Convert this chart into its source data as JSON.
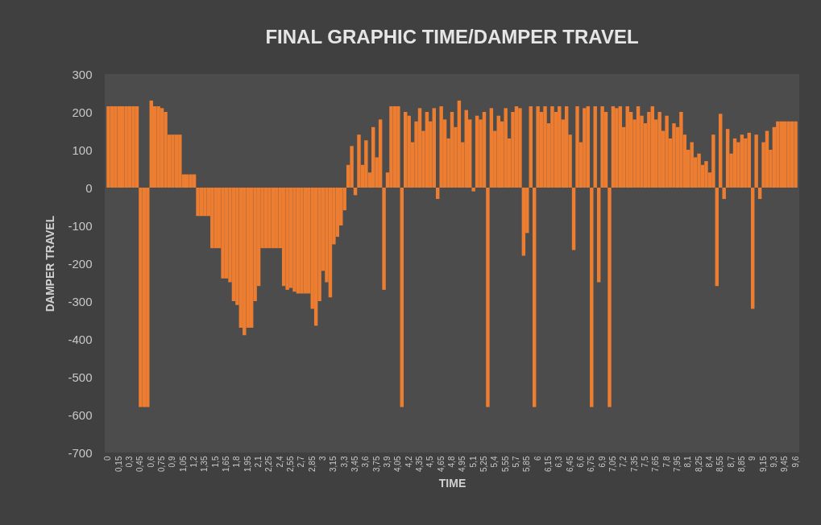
{
  "chart_data": {
    "type": "bar",
    "title": "FINAL GRAPHIC TIME/DAMPER TRAVEL",
    "xlabel": "TIME",
    "ylabel": "DAMPER TRAVEL",
    "categories": [
      "0",
      null,
      null,
      "0,15",
      null,
      null,
      "0,3",
      null,
      null,
      "0,45",
      null,
      null,
      "0,6",
      null,
      null,
      "0,75",
      null,
      null,
      "0,9",
      null,
      null,
      "1,05",
      null,
      null,
      "1,2",
      null,
      null,
      "1,35",
      null,
      null,
      "1,5",
      null,
      null,
      "1,65",
      null,
      null,
      "1,8",
      null,
      null,
      "1,95",
      null,
      null,
      "2,1",
      null,
      null,
      "2,25",
      null,
      null,
      "2,4",
      null,
      null,
      "2,55",
      null,
      null,
      "2,7",
      null,
      null,
      "2,85",
      null,
      null,
      "3",
      null,
      null,
      "3,15",
      null,
      null,
      "3,3",
      null,
      null,
      "3,45",
      null,
      null,
      "3,6",
      null,
      null,
      "3,75",
      null,
      null,
      "3,9",
      null,
      null,
      "4,05",
      null,
      null,
      "4,2",
      null,
      null,
      "4,35",
      null,
      null,
      "4,5",
      null,
      null,
      "4,65",
      null,
      null,
      "4,8",
      null,
      null,
      "4,95",
      null,
      null,
      "5,1",
      null,
      null,
      "5,25",
      null,
      null,
      "5,4",
      null,
      null,
      "5,55",
      null,
      null,
      "5,7",
      null,
      null,
      "5,85",
      null,
      null,
      "6",
      null,
      null,
      "6,15",
      null,
      null,
      "6,3",
      null,
      null,
      "6,45",
      null,
      null,
      "6,6",
      null,
      null,
      "6,75",
      null,
      null,
      "6,9",
      null,
      null,
      "7,05",
      null,
      null,
      "7,2",
      null,
      null,
      "7,35",
      null,
      null,
      "7,5",
      null,
      null,
      "7,65",
      null,
      null,
      "7,8",
      null,
      null,
      "7,95",
      null,
      null,
      "8,1",
      null,
      null,
      "8,25",
      null,
      null,
      "8,4",
      null,
      null,
      "8,55",
      null,
      null,
      "8,7",
      null,
      null,
      "8,85",
      null,
      null,
      "9",
      null,
      null,
      "9,15",
      null,
      null,
      "9,3",
      null,
      null,
      "9,45",
      null,
      null,
      "9,6"
    ],
    "values": [
      215,
      215,
      215,
      215,
      215,
      215,
      215,
      215,
      215,
      -580,
      -580,
      -580,
      230,
      215,
      215,
      210,
      200,
      140,
      140,
      140,
      140,
      35,
      35,
      35,
      35,
      -75,
      -75,
      -75,
      -75,
      -160,
      -160,
      -160,
      -240,
      -240,
      -250,
      -300,
      -310,
      -370,
      -390,
      -370,
      -370,
      -300,
      -260,
      -160,
      -160,
      -160,
      -160,
      -160,
      -160,
      -260,
      -270,
      -265,
      -275,
      -280,
      -280,
      -280,
      -280,
      -320,
      -365,
      -300,
      -220,
      -250,
      -290,
      -150,
      -130,
      -100,
      -60,
      60,
      110,
      -20,
      140,
      60,
      125,
      40,
      160,
      80,
      180,
      -270,
      40,
      215,
      215,
      215,
      -580,
      200,
      190,
      120,
      175,
      210,
      150,
      200,
      175,
      210,
      -30,
      215,
      180,
      130,
      200,
      160,
      230,
      120,
      205,
      180,
      -10,
      190,
      180,
      200,
      -580,
      210,
      150,
      190,
      175,
      210,
      130,
      200,
      215,
      210,
      -180,
      -120,
      215,
      -580,
      215,
      200,
      215,
      170,
      215,
      200,
      215,
      180,
      215,
      140,
      -165,
      215,
      120,
      210,
      215,
      -580,
      215,
      -250,
      215,
      200,
      -580,
      215,
      210,
      215,
      160,
      215,
      200,
      180,
      215,
      190,
      170,
      200,
      215,
      180,
      200,
      150,
      190,
      130,
      170,
      160,
      200,
      140,
      100,
      120,
      80,
      90,
      60,
      70,
      40,
      140,
      -260,
      195,
      -30,
      155,
      90,
      130,
      120,
      140,
      130,
      145,
      -320,
      140,
      -30,
      120,
      150,
      100,
      160,
      175,
      175,
      175,
      175,
      175,
      175
    ],
    "color": "#ed7d31",
    "ylim": [
      -700,
      300
    ],
    "yticks": [
      -700,
      -600,
      -500,
      -400,
      -300,
      -200,
      -100,
      0,
      100,
      200,
      300
    ]
  }
}
